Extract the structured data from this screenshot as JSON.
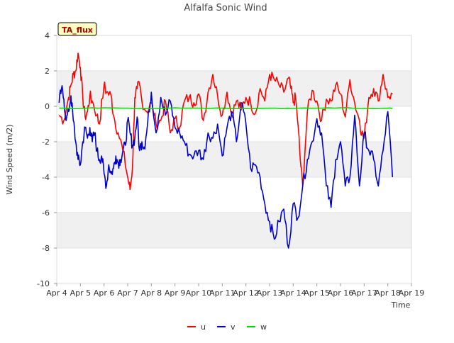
{
  "chart_data": {
    "type": "line",
    "title": "Alfalfa Sonic Wind",
    "xlabel": "Time",
    "ylabel": "Wind Speed (m/2)",
    "ylim": [
      -10,
      4
    ],
    "xlim": [
      0,
      15
    ],
    "yticks": [
      -10,
      -8,
      -6,
      -4,
      -2,
      0,
      2,
      4
    ],
    "xticks": [
      "Apr 4",
      "Apr 5",
      "Apr 6",
      "Apr 7",
      "Apr 8",
      "Apr 9",
      "Apr 10",
      "Apr 11",
      "Apr 12",
      "Apr 13",
      "Apr 14",
      "Apr 15",
      "Apr 16",
      "Apr 17",
      "Apr 18",
      "Apr 19"
    ],
    "annotation": "TA_flux",
    "legend_position": "bottom",
    "grid": "horizontal-bands",
    "series": [
      {
        "name": "u",
        "color": "#ff0000",
        "x": [
          0.1,
          0.3,
          0.5,
          0.6,
          0.7,
          0.8,
          0.9,
          1.0,
          1.1,
          1.2,
          1.3,
          1.4,
          1.5,
          1.7,
          1.8,
          2.0,
          2.1,
          2.3,
          2.4,
          2.6,
          2.8,
          3.0,
          3.1,
          3.2,
          3.3,
          3.4,
          3.5,
          3.6,
          3.8,
          4.0,
          4.2,
          4.4,
          4.6,
          4.8,
          5.0,
          5.2,
          5.4,
          5.6,
          5.8,
          6.0,
          6.2,
          6.4,
          6.6,
          6.8,
          7.0,
          7.2,
          7.4,
          7.6,
          7.8,
          8.0,
          8.2,
          8.4,
          8.6,
          8.8,
          9.0,
          9.2,
          9.4,
          9.6,
          9.8,
          9.9,
          10.0,
          10.1,
          10.2,
          10.3,
          10.4,
          10.6,
          10.8,
          11.0,
          11.2,
          11.4,
          11.6,
          11.8,
          12.0,
          12.2,
          12.4,
          12.6,
          12.8,
          12.9,
          13.0,
          13.2,
          13.4,
          13.6,
          13.8,
          14.0,
          14.2
        ],
        "values": [
          -0.5,
          -0.8,
          0.5,
          1.2,
          1.8,
          2.0,
          3.0,
          2.2,
          0.5,
          -0.6,
          -0.3,
          0.6,
          0.3,
          -0.5,
          -1.0,
          1.2,
          0.8,
          0.6,
          -0.5,
          -1.5,
          -2.5,
          -4.0,
          -4.7,
          -3.5,
          0.5,
          1.0,
          1.2,
          0.3,
          -0.3,
          0.2,
          -1.0,
          -0.8,
          0.3,
          -1.5,
          -0.7,
          -1.2,
          0.3,
          0.5,
          0.2,
          0.7,
          -0.8,
          0.8,
          1.8,
          0.6,
          -0.5,
          0.8,
          -0.5,
          0.3,
          -0.2,
          0.5,
          0.2,
          -0.4,
          1.0,
          0.3,
          1.8,
          1.5,
          1.2,
          0.8,
          1.6,
          1.0,
          0.2,
          0.5,
          -1.0,
          -3.0,
          -4.5,
          -0.3,
          0.9,
          0.3,
          -0.8,
          0.4,
          0.3,
          1.2,
          0.7,
          -0.6,
          1.5,
          0.2,
          -0.8,
          -1.5,
          -1.8,
          0.5,
          1.0,
          0.3,
          1.8,
          0.5,
          0.7
        ]
      },
      {
        "name": "v",
        "color": "#0000cc",
        "x": [
          0.1,
          0.2,
          0.3,
          0.4,
          0.5,
          0.6,
          0.7,
          0.8,
          0.9,
          1.0,
          1.1,
          1.2,
          1.3,
          1.4,
          1.5,
          1.6,
          1.7,
          1.8,
          1.9,
          2.0,
          2.1,
          2.2,
          2.3,
          2.4,
          2.5,
          2.6,
          2.7,
          2.8,
          2.9,
          3.0,
          3.1,
          3.2,
          3.3,
          3.4,
          3.5,
          3.6,
          3.7,
          3.8,
          3.9,
          4.0,
          4.2,
          4.4,
          4.6,
          4.8,
          5.0,
          5.2,
          5.4,
          5.6,
          5.8,
          6.0,
          6.2,
          6.4,
          6.6,
          6.8,
          7.0,
          7.2,
          7.4,
          7.6,
          7.8,
          8.0,
          8.2,
          8.4,
          8.6,
          8.8,
          9.0,
          9.2,
          9.4,
          9.6,
          9.8,
          10.0,
          10.2,
          10.4,
          10.6,
          10.8,
          11.0,
          11.2,
          11.4,
          11.6,
          11.8,
          12.0,
          12.2,
          12.4,
          12.6,
          12.8,
          13.0,
          13.2,
          13.4,
          13.6,
          13.8,
          14.0,
          14.2
        ],
        "values": [
          0.2,
          1.0,
          0.4,
          -0.8,
          -0.3,
          0.6,
          -0.8,
          -2.0,
          -3.0,
          -3.3,
          -2.0,
          -1.2,
          -1.8,
          -1.2,
          -2.0,
          -1.5,
          -2.5,
          -3.0,
          -2.8,
          -3.8,
          -4.5,
          -3.3,
          -3.8,
          -3.5,
          -2.8,
          -3.2,
          -3.0,
          -2.5,
          -2.2,
          -0.8,
          -1.5,
          -2.2,
          -1.8,
          -0.6,
          -2.5,
          -2.0,
          -2.3,
          -1.5,
          -0.3,
          0.8,
          -1.5,
          0.5,
          -0.5,
          0.3,
          -1.2,
          -1.5,
          -2.0,
          -2.7,
          -2.8,
          -2.5,
          -3.0,
          -1.5,
          -1.8,
          -1.0,
          -2.8,
          -1.2,
          -0.3,
          -2.0,
          0.2,
          -1.0,
          -3.5,
          -3.3,
          -4.0,
          -5.5,
          -6.5,
          -7.5,
          -6.5,
          -5.8,
          -8.0,
          -5.5,
          -6.3,
          -4.5,
          -3.0,
          -2.0,
          -0.7,
          -1.5,
          -4.5,
          -5.7,
          -3.0,
          -2.0,
          -4.5,
          -4.0,
          -0.5,
          -4.5,
          -1.5,
          -2.5,
          -3.0,
          -4.5,
          -2.5,
          -0.3,
          -4.0
        ]
      },
      {
        "name": "w",
        "color": "#00dd00",
        "x": [
          0.1,
          1.0,
          2.0,
          3.0,
          4.0,
          5.0,
          6.0,
          7.0,
          8.0,
          9.0,
          10.0,
          11.0,
          12.0,
          13.0,
          14.0,
          14.2
        ],
        "values": [
          -0.1,
          -0.12,
          -0.08,
          -0.1,
          -0.12,
          -0.08,
          -0.1,
          -0.1,
          -0.12,
          -0.1,
          -0.12,
          -0.1,
          -0.08,
          -0.12,
          -0.1,
          -0.1
        ]
      }
    ]
  }
}
